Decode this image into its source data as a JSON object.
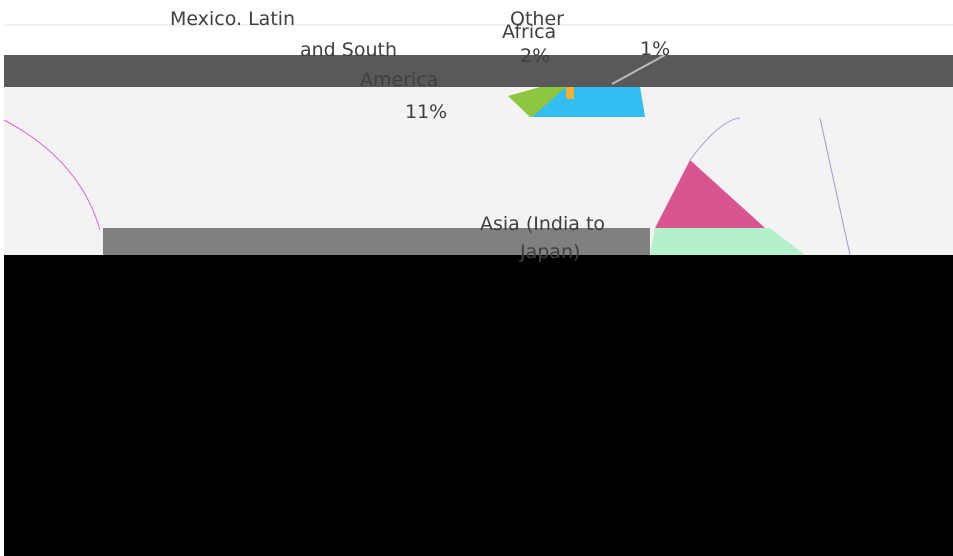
{
  "labels": {
    "mexico_latin": "Mexico. Latin",
    "and_south": "and South",
    "america": "America",
    "pct_11": "11%",
    "other": "Other",
    "africa": "Africa",
    "pct_2": "2%",
    "pct_1": "1%",
    "asia": "Asia (India to",
    "japan": "Japan)"
  }
}
